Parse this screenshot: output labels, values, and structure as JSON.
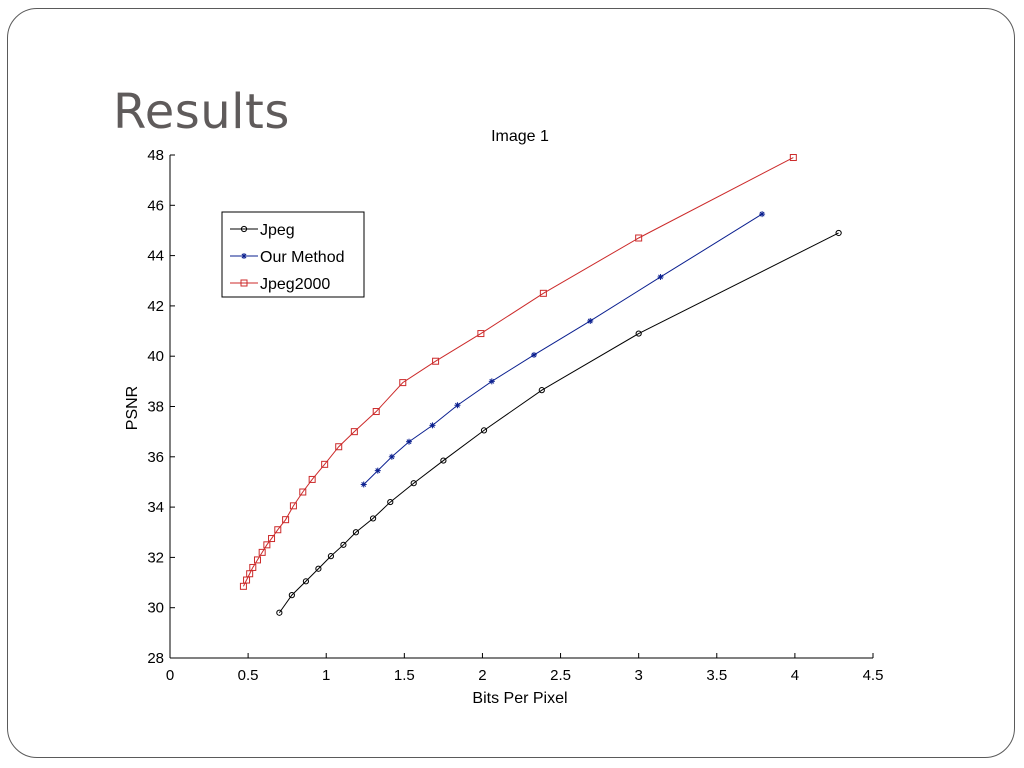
{
  "slide": {
    "title": "Results"
  },
  "chart_data": {
    "type": "line",
    "title": "Image 1",
    "xlabel": "Bits Per Pixel",
    "ylabel": "PSNR",
    "xlim": [
      0,
      4.5
    ],
    "ylim": [
      28,
      48
    ],
    "xticks": [
      0,
      0.5,
      1,
      1.5,
      2,
      2.5,
      3,
      3.5,
      4,
      4.5
    ],
    "xtick_labels": [
      "0",
      "0.5",
      "1",
      "1.5",
      "2",
      "2.5",
      "3",
      "3.5",
      "4",
      "4.5"
    ],
    "yticks": [
      28,
      30,
      32,
      34,
      36,
      38,
      40,
      42,
      44,
      46,
      48
    ],
    "ytick_labels": [
      "28",
      "30",
      "32",
      "34",
      "36",
      "38",
      "40",
      "42",
      "44",
      "46",
      "48"
    ],
    "grid": false,
    "legend_position": "upper-left",
    "series": [
      {
        "name": "Jpeg",
        "color": "#000000",
        "marker": "circle",
        "x": [
          0.7,
          0.78,
          0.87,
          0.95,
          1.03,
          1.11,
          1.19,
          1.3,
          1.41,
          1.56,
          1.75,
          2.01,
          2.38,
          3.0,
          4.28
        ],
        "y": [
          29.8,
          30.5,
          31.05,
          31.55,
          32.05,
          32.5,
          33.0,
          33.55,
          34.2,
          34.95,
          35.85,
          37.05,
          38.65,
          40.9,
          44.9
        ]
      },
      {
        "name": "Our Method",
        "color": "#0a1f8f",
        "marker": "star",
        "x": [
          1.24,
          1.33,
          1.42,
          1.53,
          1.68,
          1.84,
          2.06,
          2.33,
          2.69,
          3.14,
          3.79
        ],
        "y": [
          34.9,
          35.45,
          36.0,
          36.6,
          37.25,
          38.05,
          39.0,
          40.05,
          41.4,
          43.15,
          45.65
        ]
      },
      {
        "name": "Jpeg2000",
        "color": "#cc2a2a",
        "marker": "square",
        "x": [
          0.47,
          0.49,
          0.51,
          0.53,
          0.56,
          0.59,
          0.62,
          0.65,
          0.69,
          0.74,
          0.79,
          0.85,
          0.91,
          0.99,
          1.08,
          1.18,
          1.32,
          1.49,
          1.7,
          1.99,
          2.39,
          3.0,
          3.99
        ],
        "y": [
          30.85,
          31.1,
          31.35,
          31.6,
          31.9,
          32.2,
          32.5,
          32.75,
          33.1,
          33.5,
          34.05,
          34.6,
          35.1,
          35.7,
          36.4,
          37.0,
          37.8,
          38.95,
          39.8,
          40.9,
          42.5,
          44.7,
          47.9
        ]
      }
    ]
  }
}
